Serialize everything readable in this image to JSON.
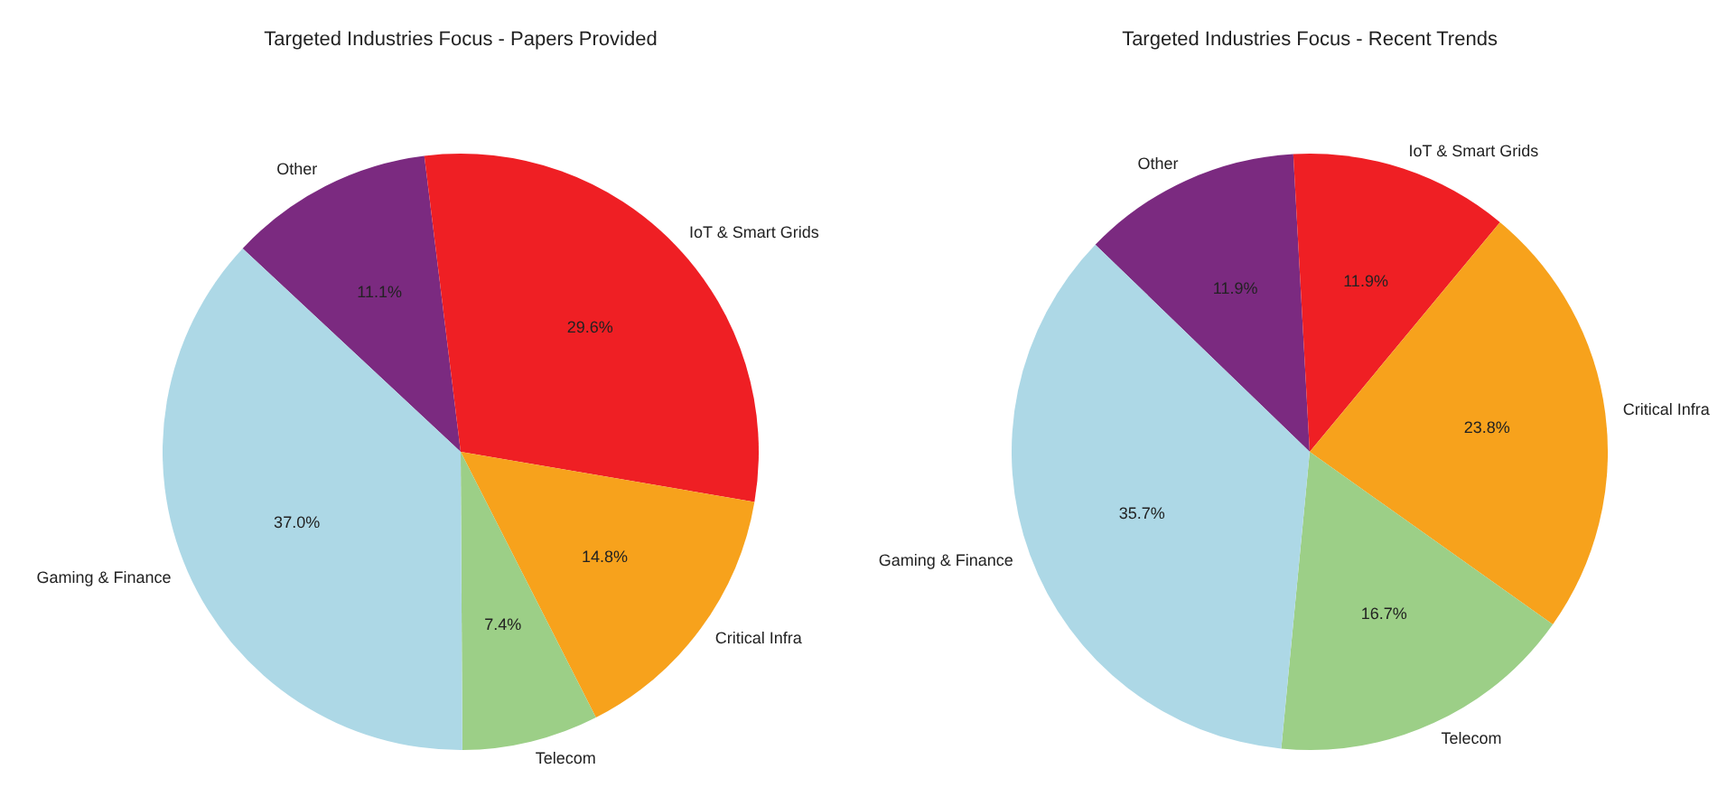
{
  "chart_data": [
    {
      "type": "pie",
      "title": "Targeted Industries Focus - Papers Provided",
      "categories": [
        "Other",
        "IoT & Smart Grids",
        "Critical Infra",
        "Telecom",
        "Gaming & Finance"
      ],
      "values": [
        11.1,
        29.6,
        14.8,
        7.4,
        37.0
      ],
      "value_labels": [
        "11.1%",
        "29.6%",
        "14.8%",
        "7.4%",
        "37.0%"
      ],
      "colors": [
        "#7b2a80",
        "#ef1f24",
        "#f7a21c",
        "#9ccf87",
        "#add8e6"
      ]
    },
    {
      "type": "pie",
      "title": "Targeted Industries Focus - Recent Trends",
      "categories": [
        "Other",
        "IoT & Smart Grids",
        "Critical Infra",
        "Telecom",
        "Gaming & Finance"
      ],
      "values": [
        11.9,
        11.9,
        23.8,
        16.7,
        35.7
      ],
      "value_labels": [
        "11.9%",
        "11.9%",
        "23.8%",
        "16.7%",
        "35.7%"
      ],
      "colors": [
        "#7b2a80",
        "#ef1f24",
        "#f7a21c",
        "#9ccf87",
        "#add8e6"
      ]
    }
  ]
}
